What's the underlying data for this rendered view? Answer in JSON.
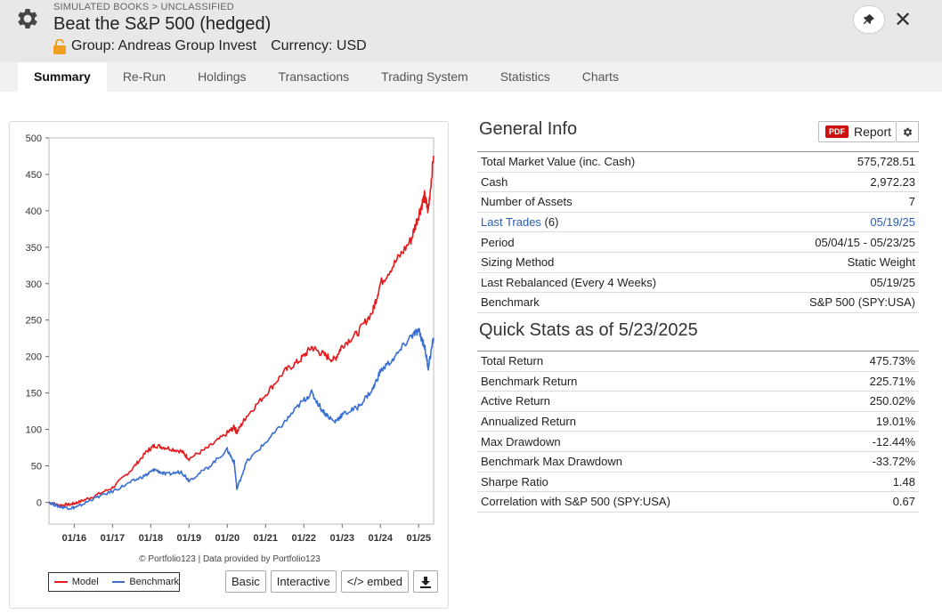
{
  "header": {
    "breadcrumb": "SIMULATED BOOKS > UNCLASSIFIED",
    "title": "Beat the S&P 500 (hedged)",
    "group": "Group: Andreas Group Invest",
    "currency": "Currency: USD"
  },
  "tabs": [
    "Summary",
    "Re-Run",
    "Holdings",
    "Transactions",
    "Trading System",
    "Statistics",
    "Charts"
  ],
  "chart": {
    "credit": "© Portfolio123 | Data provided by Portfolio123",
    "legend_model": "Model",
    "legend_benchmark": "Benchmark",
    "btn_basic": "Basic",
    "btn_interactive": "Interactive",
    "btn_embed": "</> embed",
    "model_color": "#e41a1c",
    "benchmark_color": "#3a6fd0"
  },
  "chart_data": {
    "type": "line",
    "title": "",
    "xlabel": "",
    "ylabel": "",
    "ylim": [
      -30,
      500
    ],
    "y_ticks": [
      0,
      50,
      100,
      150,
      200,
      250,
      300,
      350,
      400,
      450,
      500
    ],
    "x_tick_labels": [
      "01/16",
      "01/17",
      "01/18",
      "01/19",
      "01/20",
      "01/21",
      "01/22",
      "01/23",
      "01/24",
      "01/25"
    ],
    "x_ticks": [
      2016.0,
      2017.0,
      2018.0,
      2019.0,
      2020.0,
      2021.0,
      2022.0,
      2023.0,
      2024.0,
      2025.0
    ],
    "xlim": [
      2015.34,
      2025.39
    ],
    "grid": false,
    "legend": "bottom-left",
    "x": [
      2015.34,
      2015.6,
      2015.9,
      2016.1,
      2016.5,
      2017.0,
      2017.5,
      2017.9,
      2018.1,
      2018.4,
      2018.8,
      2019.0,
      2019.5,
      2020.0,
      2020.18,
      2020.25,
      2020.5,
      2021.0,
      2021.5,
      2021.9,
      2022.2,
      2022.5,
      2022.8,
      2023.0,
      2023.4,
      2023.8,
      2024.0,
      2024.4,
      2024.8,
      2025.0,
      2025.15,
      2025.25,
      2025.39
    ],
    "series": [
      {
        "name": "Model",
        "values": [
          0,
          -4,
          -3,
          0,
          8,
          20,
          45,
          70,
          78,
          75,
          70,
          60,
          75,
          95,
          103,
          96,
          118,
          148,
          180,
          195,
          213,
          203,
          195,
          215,
          232,
          262,
          300,
          330,
          360,
          395,
          420,
          400,
          475.73
        ]
      },
      {
        "name": "Benchmark",
        "values": [
          0,
          -6,
          -8,
          -6,
          5,
          15,
          28,
          38,
          45,
          38,
          42,
          30,
          48,
          72,
          55,
          18,
          55,
          82,
          110,
          135,
          150,
          125,
          110,
          120,
          130,
          155,
          180,
          200,
          228,
          235,
          215,
          185,
          225.71
        ]
      }
    ]
  },
  "general_info": {
    "title": "General Info",
    "report_label": "Report",
    "pdf_badge": "PDF",
    "rows": [
      {
        "label": "Total Market Value (inc. Cash)",
        "value": "575,728.51"
      },
      {
        "label": "Cash",
        "value": "2,972.23"
      },
      {
        "label": "Number of Assets",
        "value": "7"
      },
      {
        "label": "Last Trades",
        "count": " (6)",
        "value": "05/19/25"
      },
      {
        "label": "Period",
        "value": "05/04/15 - 05/23/25"
      },
      {
        "label": "Sizing Method",
        "value": "Static Weight"
      },
      {
        "label": "Last Rebalanced (Every 4 Weeks)",
        "value": "05/19/25"
      },
      {
        "label": "Benchmark",
        "value": "S&P 500 (SPY:USA)"
      }
    ]
  },
  "quick_stats": {
    "title": "Quick Stats as of 5/23/2025",
    "rows": [
      {
        "label": "Total Return",
        "value": "475.73%"
      },
      {
        "label": "Benchmark Return",
        "value": "225.71%"
      },
      {
        "label": "Active Return",
        "value": "250.02%"
      },
      {
        "label": "Annualized Return",
        "value": "19.01%"
      },
      {
        "label": "Max Drawdown",
        "value": "-12.44%"
      },
      {
        "label": "Benchmark Max Drawdown",
        "value": "-33.72%"
      },
      {
        "label": "Sharpe Ratio",
        "value": "1.48"
      },
      {
        "label": "Correlation with S&P 500 (SPY:USA)",
        "value": "0.67"
      }
    ]
  }
}
